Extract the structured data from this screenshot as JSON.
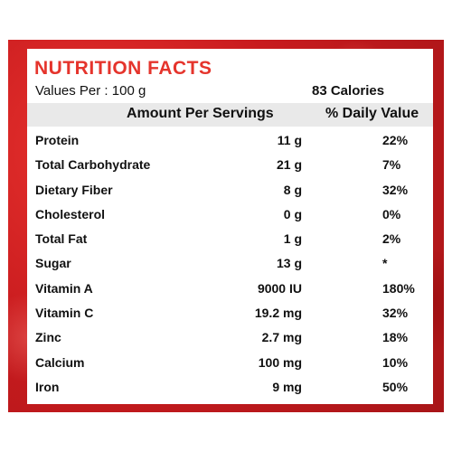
{
  "label": {
    "title": "NUTRITION FACTS",
    "values_per": "Values Per : 100 g",
    "calories": "83  Calories",
    "header": {
      "amount": "Amount Per Servings",
      "daily_value": "% Daily Value"
    },
    "rows": [
      {
        "nutrient": "Protein",
        "amount": "11 g",
        "daily": "22%"
      },
      {
        "nutrient": "Total Carbohydrate",
        "amount": "21 g",
        "daily": "7%"
      },
      {
        "nutrient": "Dietary Fiber",
        "amount": "8 g",
        "daily": "32%"
      },
      {
        "nutrient": "Cholesterol",
        "amount": "0 g",
        "daily": "0%"
      },
      {
        "nutrient": "Total Fat",
        "amount": "1 g",
        "daily": "2%"
      },
      {
        "nutrient": "Sugar",
        "amount": "13 g",
        "daily": "*"
      },
      {
        "nutrient": "Vitamin A",
        "amount": "9000 IU",
        "daily": "180%"
      },
      {
        "nutrient": "Vitamin C",
        "amount": "19.2 mg",
        "daily": "32%"
      },
      {
        "nutrient": "Zinc",
        "amount": "2.7 mg",
        "daily": "18%"
      },
      {
        "nutrient": "Calcium",
        "amount": "100 mg",
        "daily": "10%"
      },
      {
        "nutrient": "Iron",
        "amount": "9 mg",
        "daily": "50%"
      }
    ]
  },
  "colors": {
    "title_red": "#e5342c",
    "frame_red": "#c81b1e",
    "header_gray": "#e9e9e9"
  }
}
